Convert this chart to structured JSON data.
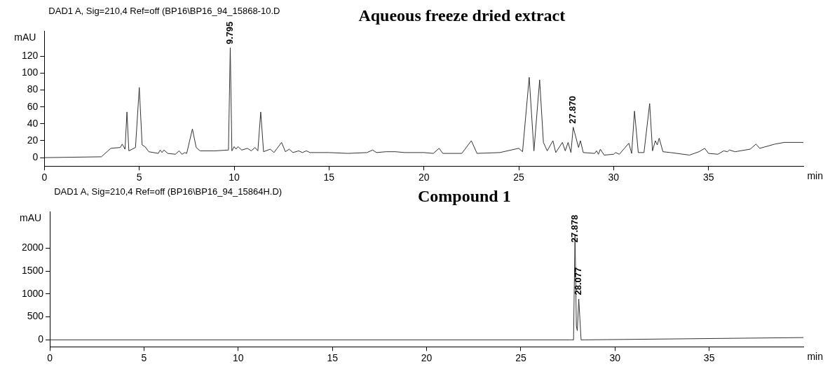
{
  "chart_data": [
    {
      "type": "line",
      "title": "Aqueous freeze dried extract",
      "xlabel": "min",
      "ylabel": "mAU",
      "annotations": [
        "DAD1 A, Sig=210,4 Ref=off (BP16\\BP16_94_15868-10.D",
        {
          "text": "9.795",
          "x": 9.795,
          "y": 134
        },
        {
          "text": "27.870",
          "x": 27.87,
          "y": 40
        }
      ],
      "x": [
        0,
        3.0,
        3.5,
        4.0,
        4.1,
        4.25,
        4.35,
        4.45,
        4.8,
        5.0,
        5.15,
        5.3,
        5.5,
        6.0,
        6.1,
        6.2,
        6.3,
        6.5,
        6.9,
        7.1,
        7.25,
        7.4,
        7.5,
        7.8,
        8.0,
        8.2,
        9.0,
        9.7,
        9.795,
        9.88,
        10.0,
        10.1,
        10.2,
        10.4,
        10.7,
        10.9,
        11.1,
        11.25,
        11.4,
        11.55,
        11.9,
        12.1,
        12.5,
        12.7,
        12.9,
        13.1,
        13.4,
        13.6,
        13.8,
        14.0,
        15,
        16,
        17.0,
        17.3,
        17.5,
        18,
        18.5,
        19,
        20,
        20.5,
        20.8,
        21.0,
        22,
        22.5,
        22.8,
        24,
        25.0,
        25.2,
        25.55,
        25.8,
        26.1,
        26.3,
        26.5,
        26.8,
        26.95,
        27.3,
        27.45,
        27.6,
        27.75,
        27.87,
        28.15,
        28.25,
        28.4,
        29.0,
        29.1,
        29.2,
        29.3,
        29.5,
        30.0,
        30.1,
        30.3,
        30.8,
        30.95,
        31.1,
        31.3,
        31.6,
        31.9,
        32.05,
        32.2,
        32.3,
        32.4,
        32.6,
        33,
        34,
        34.5,
        34.8,
        35.0,
        35.5,
        35.8,
        36.0,
        36.1,
        36.4,
        37.2,
        37.5,
        37.7,
        38.5,
        39,
        40
      ],
      "series": [
        {
          "color": "#333333",
          "values": [
            0,
            1,
            11,
            12,
            16,
            10,
            54,
            8,
            12,
            83,
            15,
            13,
            7,
            5,
            9,
            6,
            9,
            5,
            4,
            8,
            4,
            6,
            5,
            34,
            12,
            8,
            8,
            9,
            130,
            8,
            13,
            10,
            13,
            9,
            11,
            8,
            12,
            8,
            54,
            7,
            10,
            6,
            18,
            7,
            10,
            6,
            8,
            6,
            8,
            6,
            6,
            5,
            6,
            9,
            6,
            7,
            7,
            6,
            6,
            5,
            11,
            5,
            5,
            20,
            5,
            6,
            11,
            7,
            95,
            8,
            92,
            18,
            8,
            20,
            6,
            18,
            8,
            18,
            6,
            36,
            12,
            20,
            6,
            5,
            8,
            4,
            10,
            3,
            4,
            6,
            4,
            17,
            5,
            55,
            6,
            6,
            64,
            8,
            20,
            15,
            23,
            7,
            6,
            3,
            7,
            11,
            5,
            4,
            8,
            7,
            9,
            7,
            10,
            16,
            11,
            16,
            18,
            18
          ]
        }
      ],
      "xlim": [
        0,
        40
      ],
      "xticks": [
        0,
        5,
        10,
        15,
        20,
        25,
        30,
        35
      ],
      "ylim": [
        -10,
        150
      ],
      "yticks": [
        0,
        20,
        40,
        60,
        80,
        100,
        120
      ],
      "grid": false,
      "legend": false,
      "marker": "none",
      "line_style": "solid"
    },
    {
      "type": "line",
      "title": "Compound 1",
      "xlabel": "min",
      "ylabel": "mAU",
      "annotations": [
        "DAD1 A, Sig=210,4 Ref=off (BP16\\BP16_94_15864H.D)",
        {
          "text": "27.878",
          "x": 27.878,
          "y": 2120
        },
        {
          "text": "28.077",
          "x": 28.077,
          "y": 975
        }
      ],
      "x": [
        0,
        27.6,
        27.7,
        27.8,
        27.878,
        27.95,
        28.0,
        28.077,
        28.2,
        28.4,
        40
      ],
      "series": [
        {
          "color": "#333333",
          "values": [
            0,
            0,
            0,
            0,
            2300,
            300,
            200,
            890,
            0,
            0,
            50
          ]
        }
      ],
      "xlim": [
        0,
        40
      ],
      "xticks": [
        0,
        5,
        10,
        15,
        20,
        25,
        30,
        35
      ],
      "ylim": [
        -150,
        2800
      ],
      "yticks": [
        0,
        500,
        1000,
        1500,
        2000
      ],
      "grid": false,
      "legend": false,
      "marker": "none",
      "line_style": "solid"
    }
  ]
}
